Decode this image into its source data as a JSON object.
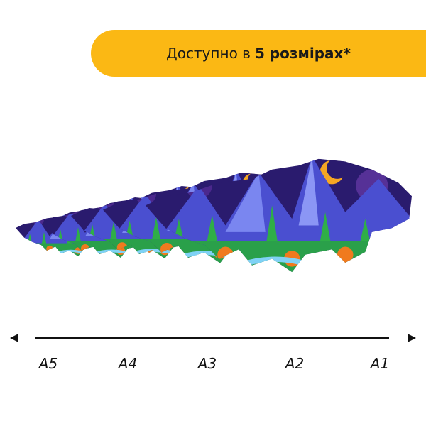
{
  "banner": {
    "text": "Доступно в",
    "highlight": "5 розмірах*"
  },
  "sizes": [
    "A5",
    "A4",
    "A3",
    "A2",
    "A1"
  ]
}
